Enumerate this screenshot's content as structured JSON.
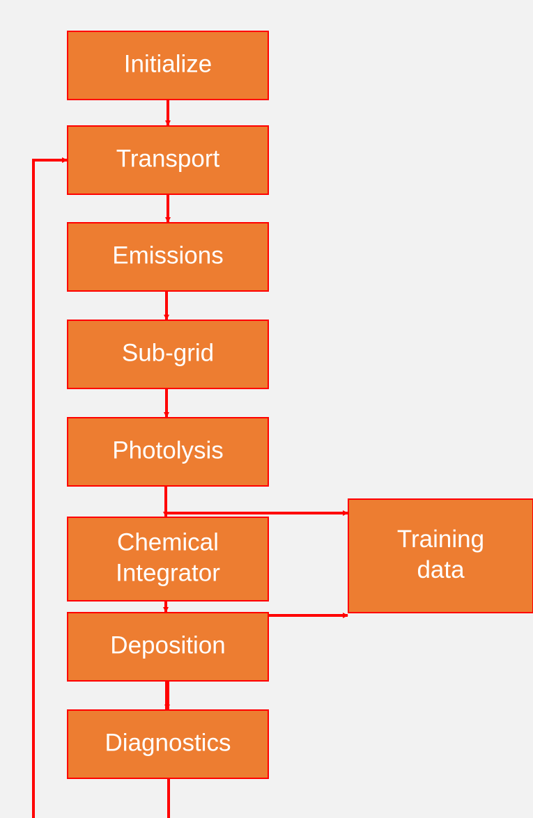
{
  "nodes": [
    {
      "lines": [
        "Initialize"
      ]
    },
    {
      "lines": [
        "Transport"
      ]
    },
    {
      "lines": [
        "Emissions"
      ]
    },
    {
      "lines": [
        "Sub-grid"
      ]
    },
    {
      "lines": [
        "Photolysis"
      ]
    },
    {
      "lines": [
        "Chemical",
        "Integrator"
      ]
    },
    {
      "lines": [
        "Deposition"
      ]
    },
    {
      "lines": [
        "Diagnostics"
      ]
    },
    {
      "lines": [
        "Training",
        "data"
      ]
    }
  ]
}
